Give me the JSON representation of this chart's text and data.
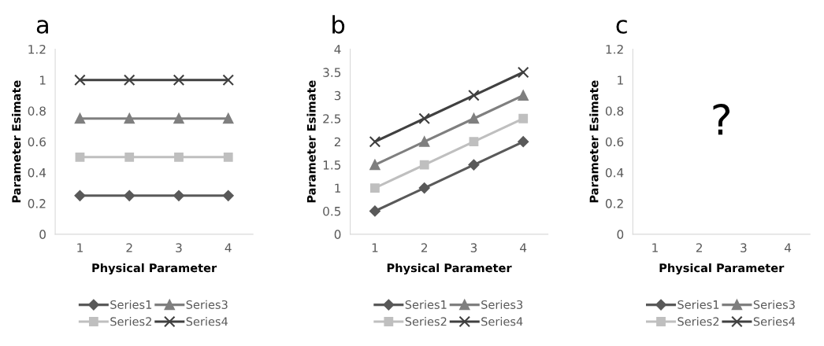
{
  "chart_data": [
    {
      "type": "line",
      "title": "a",
      "xlabel": "Physical Parameter",
      "ylabel": "Parameter Esimate",
      "categories": [
        "1",
        "2",
        "3",
        "4"
      ],
      "ylim": [
        0,
        1.2
      ],
      "yticks": [
        0,
        0.2,
        0.4,
        0.6,
        0.8,
        1,
        1.2
      ],
      "grid": false,
      "legend": "bottom",
      "series": [
        {
          "name": "Series1",
          "color": "#595959",
          "marker": "diamond",
          "values": [
            0.25,
            0.25,
            0.25,
            0.25
          ]
        },
        {
          "name": "Series2",
          "color": "#bfbfbf",
          "marker": "square",
          "values": [
            0.5,
            0.5,
            0.5,
            0.5
          ]
        },
        {
          "name": "Series3",
          "color": "#7f7f7f",
          "marker": "triangle",
          "values": [
            0.75,
            0.75,
            0.75,
            0.75
          ]
        },
        {
          "name": "Series4",
          "color": "#404040",
          "marker": "cross",
          "values": [
            1,
            1,
            1,
            1
          ]
        }
      ]
    },
    {
      "type": "line",
      "title": "b",
      "xlabel": "Physical Parameter",
      "ylabel": "Parameter Esimate",
      "categories": [
        "1",
        "2",
        "3",
        "4"
      ],
      "ylim": [
        0,
        4
      ],
      "yticks": [
        0,
        0.5,
        1,
        1.5,
        2,
        2.5,
        3,
        3.5,
        4
      ],
      "grid": false,
      "legend": "bottom",
      "series": [
        {
          "name": "Series1",
          "color": "#595959",
          "marker": "diamond",
          "values": [
            0.5,
            1,
            1.5,
            2
          ]
        },
        {
          "name": "Series2",
          "color": "#bfbfbf",
          "marker": "square",
          "values": [
            1,
            1.5,
            2,
            2.5
          ]
        },
        {
          "name": "Series3",
          "color": "#7f7f7f",
          "marker": "triangle",
          "values": [
            1.5,
            2,
            2.5,
            3
          ]
        },
        {
          "name": "Series4",
          "color": "#404040",
          "marker": "cross",
          "values": [
            2,
            2.5,
            3,
            3.5
          ]
        }
      ]
    },
    {
      "type": "line",
      "title": "c",
      "xlabel": "Physical Parameter",
      "ylabel": "Parameter Esimate",
      "categories": [
        "1",
        "2",
        "3",
        "4"
      ],
      "ylim": [
        0,
        1.2
      ],
      "yticks": [
        0,
        0.2,
        0.4,
        0.6,
        0.8,
        1,
        1.2
      ],
      "grid": false,
      "legend": "bottom",
      "annotations": [
        "?"
      ],
      "series": [
        {
          "name": "Series1",
          "color": "#595959",
          "marker": "diamond",
          "values": [
            null,
            null,
            null,
            null
          ]
        },
        {
          "name": "Series2",
          "color": "#bfbfbf",
          "marker": "square",
          "values": [
            null,
            null,
            null,
            null
          ]
        },
        {
          "name": "Series3",
          "color": "#7f7f7f",
          "marker": "triangle",
          "values": [
            null,
            null,
            null,
            null
          ]
        },
        {
          "name": "Series4",
          "color": "#404040",
          "marker": "cross",
          "values": [
            null,
            null,
            null,
            null
          ]
        }
      ]
    }
  ]
}
